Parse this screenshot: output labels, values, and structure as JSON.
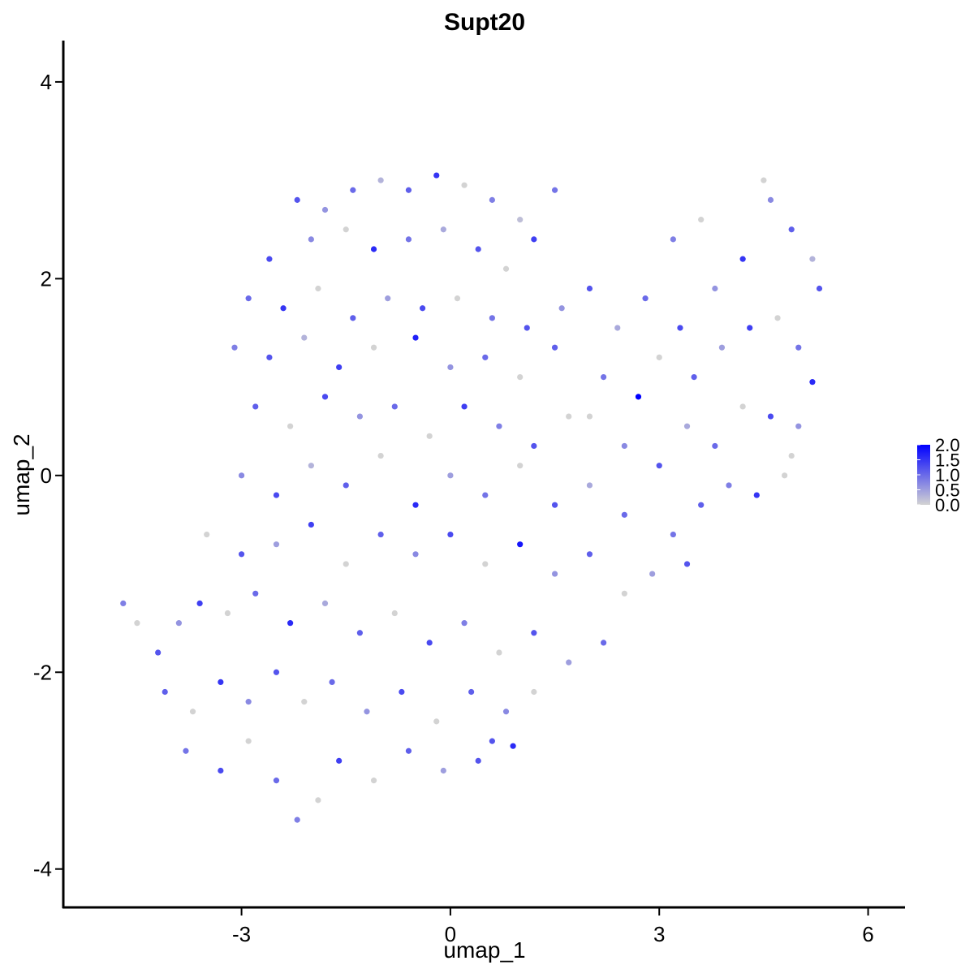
{
  "chart_data": {
    "type": "scatter",
    "title": "Supt20",
    "xlabel": "umap_1",
    "ylabel": "umap_2",
    "xlim": [
      -5.56,
      6.53
    ],
    "xticks": [
      -3,
      0,
      3,
      6
    ],
    "ylim": [
      -4.39,
      4.42
    ],
    "yticks": [
      -4,
      -2,
      0,
      2,
      4
    ],
    "x": [
      -2.2,
      -1.8,
      -1.4,
      -1.0,
      -0.6,
      -0.2,
      0.2,
      0.6,
      1.0,
      1.5,
      -2.6,
      -2.0,
      -1.5,
      -1.1,
      -0.6,
      -0.1,
      0.4,
      0.8,
      1.2,
      -2.9,
      -2.4,
      -1.9,
      -1.4,
      -0.9,
      -0.4,
      0.1,
      0.6,
      1.1,
      1.6,
      -3.1,
      -2.6,
      -2.1,
      -1.6,
      -1.1,
      -0.5,
      0.0,
      0.5,
      1.0,
      1.5,
      2.0,
      2.4,
      2.8,
      3.2,
      3.6,
      3.3,
      3.8,
      4.2,
      4.6,
      4.5,
      4.9,
      5.2,
      5.3,
      2.2,
      2.7,
      3.0,
      3.5,
      3.9,
      4.3,
      4.7,
      5.0,
      5.2,
      2.0,
      2.5,
      3.0,
      3.4,
      3.8,
      4.2,
      4.6,
      5.0,
      4.9,
      3.6,
      4.0,
      4.4,
      4.8,
      3.2,
      3.4,
      2.9,
      -2.8,
      -2.3,
      -1.8,
      -1.3,
      -0.8,
      -0.3,
      0.2,
      0.7,
      1.2,
      1.7,
      -3.0,
      -2.5,
      -2.0,
      -1.5,
      -1.0,
      -0.5,
      0.0,
      0.5,
      1.0,
      1.5,
      2.0,
      2.5,
      -3.5,
      -3.0,
      -2.5,
      -2.0,
      -1.5,
      -1.0,
      -0.5,
      0.0,
      0.5,
      1.0,
      1.5,
      2.0,
      2.5,
      -4.7,
      -4.5,
      -4.2,
      -3.9,
      -3.6,
      -3.2,
      -2.8,
      -2.3,
      -1.8,
      -1.3,
      -0.8,
      -0.3,
      0.2,
      0.7,
      1.2,
      1.7,
      2.2,
      -4.1,
      -3.7,
      -3.3,
      -2.9,
      -2.5,
      -2.1,
      -1.7,
      -1.2,
      -0.7,
      -0.2,
      0.3,
      0.8,
      1.2,
      0.6,
      -3.8,
      -3.3,
      -2.9,
      -2.5,
      -2.2,
      -1.9,
      -1.6,
      -1.1,
      -0.6,
      -0.1,
      0.4,
      0.9
    ],
    "values": [
      2.8,
      2.7,
      2.9,
      3.0,
      2.9,
      3.05,
      2.95,
      2.8,
      2.6,
      2.9,
      2.2,
      2.4,
      2.5,
      2.3,
      2.4,
      2.5,
      2.3,
      2.1,
      2.4,
      1.8,
      1.7,
      1.9,
      1.6,
      1.8,
      1.7,
      1.8,
      1.6,
      1.5,
      1.7,
      1.3,
      1.2,
      1.4,
      1.1,
      1.3,
      1.4,
      1.1,
      1.2,
      1.0,
      1.3,
      1.9,
      1.5,
      1.8,
      2.4,
      2.6,
      1.5,
      1.9,
      2.2,
      2.8,
      3.0,
      2.5,
      2.2,
      1.9,
      1.0,
      0.8,
      1.2,
      1.0,
      1.3,
      1.5,
      1.6,
      1.3,
      0.95,
      0.6,
      0.3,
      0.1,
      0.5,
      0.3,
      0.7,
      0.6,
      0.5,
      0.2,
      -0.3,
      -0.1,
      -0.2,
      0.0,
      -0.6,
      -0.9,
      -1.0,
      0.7,
      0.5,
      0.8,
      0.6,
      0.7,
      0.4,
      0.7,
      0.5,
      0.3,
      0.6,
      0.0,
      -0.2,
      0.1,
      -0.1,
      0.2,
      -0.3,
      0.0,
      -0.2,
      0.1,
      -0.3,
      -0.1,
      -0.4,
      -0.6,
      -0.8,
      -0.7,
      -0.5,
      -0.9,
      -0.6,
      -0.8,
      -0.6,
      -0.9,
      -0.7,
      -1.0,
      -0.8,
      -1.2,
      -1.3,
      -1.5,
      -1.8,
      -1.5,
      -1.3,
      -1.4,
      -1.2,
      -1.5,
      -1.3,
      -1.6,
      -1.4,
      -1.7,
      -1.5,
      -1.8,
      -1.6,
      -1.9,
      -1.7,
      -2.2,
      -2.4,
      -2.1,
      -2.3,
      -2.0,
      -2.3,
      -2.1,
      -2.4,
      -2.2,
      -2.5,
      -2.2,
      -2.4,
      -2.2,
      -2.7,
      -2.8,
      -3.0,
      -2.7,
      -3.1,
      -3.5,
      -3.3,
      -2.9,
      -3.1,
      -2.8,
      -3.0,
      -2.9,
      -2.75
    ],
    "expression": [
      1.2,
      0.6,
      1.0,
      0.3,
      1.1,
      1.5,
      0,
      0.8,
      0.2,
      0.9,
      1.3,
      0.7,
      0,
      1.6,
      0.9,
      0.4,
      1.2,
      0,
      1.4,
      1.0,
      1.5,
      0,
      1.1,
      0.5,
      1.3,
      0,
      0.9,
      1.2,
      0.6,
      0.8,
      1.2,
      0.3,
      1.4,
      0,
      1.7,
      0.6,
      1.0,
      0,
      1.1,
      1.2,
      0.4,
      1.0,
      0.8,
      0,
      1.3,
      0.6,
      1.5,
      0.7,
      0,
      1.1,
      0.3,
      1.2,
      0.9,
      2.0,
      0,
      1.1,
      0.5,
      1.4,
      0,
      0.9,
      1.6,
      0,
      0.7,
      1.2,
      0.4,
      1.0,
      0,
      1.3,
      0.6,
      0,
      1.1,
      0.8,
      1.5,
      0,
      0.9,
      1.2,
      0.5,
      1.1,
      0,
      1.3,
      0.6,
      1.0,
      0,
      1.4,
      0.8,
      1.2,
      0,
      0.7,
      1.3,
      0.3,
      1.1,
      0,
      1.6,
      0.5,
      0.9,
      0,
      1.2,
      0.4,
      1.0,
      0,
      1.2,
      0.5,
      1.4,
      0,
      1.1,
      0.7,
      1.3,
      0,
      1.8,
      0.6,
      1.1,
      0,
      0.8,
      0,
      1.2,
      0.6,
      1.4,
      0,
      1.0,
      1.6,
      0.4,
      1.1,
      0,
      1.3,
      0.8,
      0,
      1.2,
      0.5,
      1.0,
      1.1,
      0,
      1.5,
      0.7,
      1.2,
      0,
      1.0,
      0.6,
      1.3,
      0,
      1.1,
      0.7,
      0,
      1.2,
      0.9,
      1.3,
      0,
      1.0,
      0.8,
      0,
      1.4,
      0,
      1.1,
      0.5,
      1.2,
      1.6
    ],
    "colorbar": {
      "lim": [
        0,
        2
      ],
      "colors": [
        "#d3d3d3",
        "#0000ff"
      ],
      "ticks": [
        {
          "value": 0,
          "label": "0.0"
        },
        {
          "value": 0.5,
          "label": "0.5"
        },
        {
          "value": 1,
          "label": "1.0"
        },
        {
          "value": 1.5,
          "label": "1.5"
        },
        {
          "value": 2,
          "label": "2.0"
        }
      ]
    }
  }
}
